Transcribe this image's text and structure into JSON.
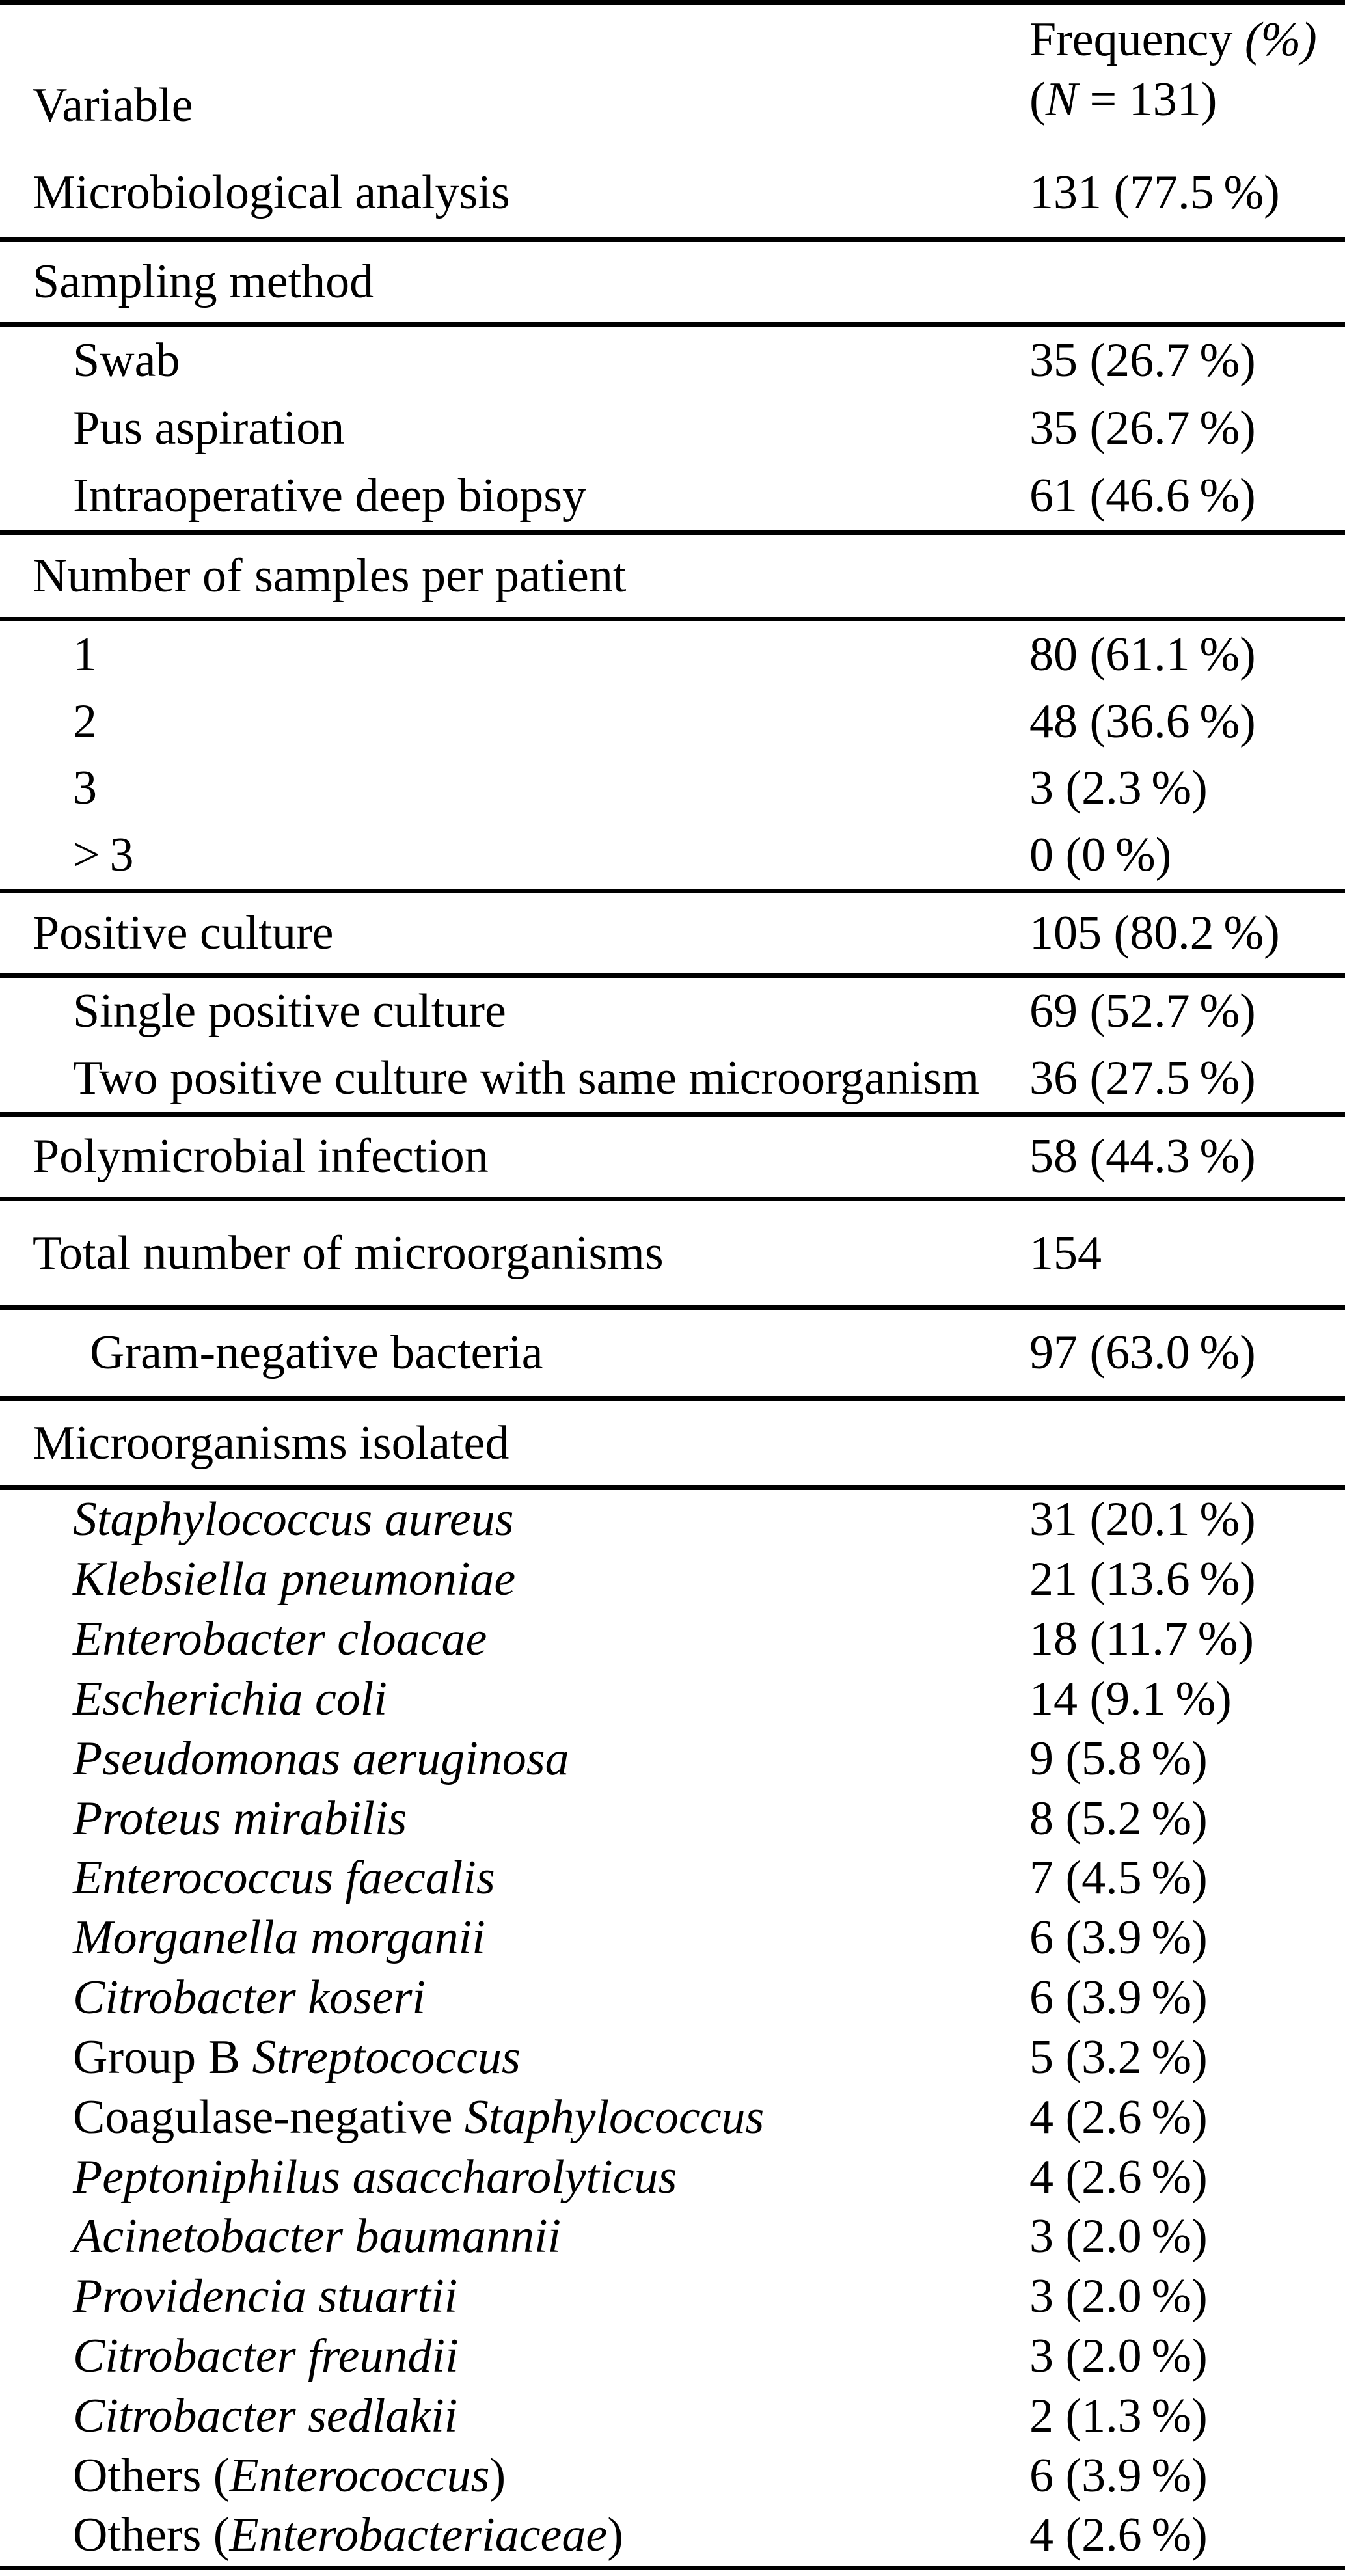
{
  "colors": {
    "text": "#000000",
    "background": "#ffffff",
    "rule": "#000000"
  },
  "table": {
    "header": {
      "variable_label": "Variable",
      "frequency_line1": "Frequency *(%)*",
      "frequency_line2": "(*N* = 131)"
    },
    "sections": [
      {
        "id": "micro_analysis",
        "rows": [
          {
            "label": "Microbiological analysis",
            "value": "131 (77.5 %)",
            "indent": 0
          }
        ]
      },
      {
        "id": "sampling_head",
        "rows": [
          {
            "label": "Sampling method",
            "value": "",
            "indent": 0
          }
        ]
      },
      {
        "id": "sampling_items",
        "rows": [
          {
            "label": "Swab",
            "value": "35 (26.7 %)",
            "indent": 1
          },
          {
            "label": "Pus aspiration",
            "value": "35 (26.7 %)",
            "indent": 1
          },
          {
            "label": "Intraoperative deep biopsy",
            "value": "61 (46.6 %)",
            "indent": 1
          }
        ]
      },
      {
        "id": "samples_head",
        "rows": [
          {
            "label": "Number of samples per patient",
            "value": "",
            "indent": 0
          }
        ]
      },
      {
        "id": "samples_items",
        "rows": [
          {
            "label": "1",
            "value": "80 (61.1 %)",
            "indent": 1
          },
          {
            "label": "2",
            "value": "48 (36.6 %)",
            "indent": 1
          },
          {
            "label": "3",
            "value": "3 (2.3 %)",
            "indent": 1
          },
          {
            "label": "> 3",
            "value": "0 (0 %)",
            "indent": 1
          }
        ]
      },
      {
        "id": "positive_culture",
        "rows": [
          {
            "label": "Positive culture",
            "value": "105 (80.2 %)",
            "indent": 0
          }
        ]
      },
      {
        "id": "positive_items",
        "rows": [
          {
            "label": "Single positive culture",
            "value": "69 (52.7 %)",
            "indent": 1
          },
          {
            "label": "Two positive culture with same microorganism",
            "value": "36 (27.5 %)",
            "indent": 1
          }
        ]
      },
      {
        "id": "polymicrobial",
        "rows": [
          {
            "label": "Polymicrobial infection",
            "value": "58 (44.3 %)",
            "indent": 0
          }
        ]
      },
      {
        "id": "total_micro",
        "rows": [
          {
            "label": "Total number of microorganisms",
            "value": "154",
            "indent": 0
          }
        ]
      },
      {
        "id": "gram_negative",
        "rows": [
          {
            "label": "Gram-negative bacteria",
            "value": "97 (63.0 %)",
            "indent": 2
          }
        ]
      },
      {
        "id": "isolated_head",
        "rows": [
          {
            "label": "Microorganisms isolated",
            "value": "",
            "indent": 0
          }
        ]
      },
      {
        "id": "species",
        "rows": [
          {
            "label": "*Staphylococcus aureus*",
            "value": "31 (20.1 %)",
            "indent": 1
          },
          {
            "label": "*Klebsiella pneumoniae*",
            "value": "21 (13.6 %)",
            "indent": 1
          },
          {
            "label": "*Enterobacter cloacae*",
            "value": "18 (11.7 %)",
            "indent": 1
          },
          {
            "label": "*Escherichia coli*",
            "value": "14 (9.1 %)",
            "indent": 1
          },
          {
            "label": "*Pseudomonas aeruginosa*",
            "value": "9 (5.8 %)",
            "indent": 1
          },
          {
            "label": "*Proteus mirabilis*",
            "value": "8 (5.2 %)",
            "indent": 1
          },
          {
            "label": "*Enterococcus faecalis*",
            "value": "7 (4.5 %)",
            "indent": 1
          },
          {
            "label": "*Morganella morganii*",
            "value": "6 (3.9 %)",
            "indent": 1
          },
          {
            "label": "*Citrobacter koseri*",
            "value": "6 (3.9 %)",
            "indent": 1
          },
          {
            "label": "Group B *Streptococcus*",
            "value": "5 (3.2 %)",
            "indent": 1
          },
          {
            "label": "Coagulase-negative *Staphylococcus*",
            "value": "4 (2.6 %)",
            "indent": 1
          },
          {
            "label": "*Peptoniphilus asaccharolyticus*",
            "value": "4 (2.6 %)",
            "indent": 1
          },
          {
            "label": "*Acinetobacter baumannii*",
            "value": "3 (2.0 %)",
            "indent": 1
          },
          {
            "label": "*Providencia stuartii*",
            "value": "3 (2.0 %)",
            "indent": 1
          },
          {
            "label": "*Citrobacter freundii*",
            "value": "3 (2.0 %)",
            "indent": 1
          },
          {
            "label": "*Citrobacter sedlakii*",
            "value": "2 (1.3 %)",
            "indent": 1
          },
          {
            "label": "Others (*Enterococcus*)",
            "value": "6 (3.9 %)",
            "indent": 1
          },
          {
            "label": "Others (*Enterobacteriaceae*)",
            "value": "4 (2.6 %)",
            "indent": 1
          }
        ]
      }
    ]
  }
}
